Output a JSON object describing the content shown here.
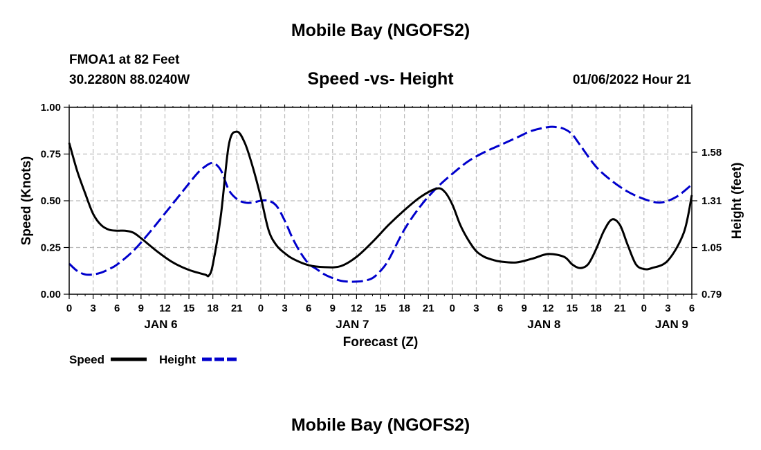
{
  "header": {
    "title": "Mobile Bay (NGOFS2)",
    "station": "FMOA1 at 82 Feet",
    "coords": "30.2280N  88.0240W",
    "subtitle": "Speed -vs- Height",
    "datetime": "01/06/2022 Hour 21"
  },
  "footer": {
    "title": "Mobile Bay (NGOFS2)"
  },
  "chart_data": {
    "type": "line",
    "title": "Speed -vs- Height",
    "xlabel": "Forecast (Z)",
    "ylabel": "Speed (Knots)",
    "y2label": "Height (feet)",
    "xlim": [
      0,
      78
    ],
    "ylim": [
      0,
      1.0
    ],
    "y2lim": [
      0.79,
      1.83
    ],
    "x_ticks": [
      0,
      3,
      6,
      9,
      12,
      15,
      18,
      21,
      24,
      27,
      30,
      33,
      36,
      39,
      42,
      45,
      48,
      51,
      54,
      57,
      60,
      63,
      66,
      69,
      72,
      75,
      78
    ],
    "x_tick_labels": [
      "0",
      "3",
      "6",
      "9",
      "12",
      "15",
      "18",
      "21",
      "0",
      "3",
      "6",
      "9",
      "12",
      "15",
      "18",
      "21",
      "0",
      "3",
      "6",
      "9",
      "12",
      "15",
      "18",
      "21",
      "0",
      "3",
      "6"
    ],
    "date_labels": [
      {
        "x": 12,
        "label": "JAN 6"
      },
      {
        "x": 36,
        "label": "JAN 7"
      },
      {
        "x": 60,
        "label": "JAN 8"
      },
      {
        "x": 76,
        "label": "JAN 9"
      }
    ],
    "y_ticks": [
      0,
      0.25,
      0.5,
      0.75,
      1.0
    ],
    "y_tick_labels": [
      "0.00",
      "0.25",
      "0.50",
      "0.75",
      "1.00"
    ],
    "y2_ticks": [
      0.79,
      1.05,
      1.31,
      1.58
    ],
    "y2_tick_labels": [
      "0.79",
      "1.05",
      "1.31",
      "1.58"
    ],
    "grid": true,
    "legend": {
      "position": "bottom-left"
    },
    "series": [
      {
        "name": "Speed",
        "axis": "left",
        "color": "#000000",
        "style": "solid",
        "x": [
          0,
          1,
          2,
          3,
          4,
          5,
          6,
          7,
          8,
          9,
          11,
          13,
          15,
          17,
          17.5,
          18,
          19,
          20,
          21,
          22,
          23,
          24,
          25,
          26,
          27,
          28,
          30,
          32,
          34,
          36,
          38,
          40,
          42,
          44,
          46,
          47,
          48,
          49,
          50,
          51,
          52,
          53,
          54,
          56,
          58,
          60,
          62,
          63,
          64,
          65,
          66,
          67,
          68,
          69,
          70,
          71,
          72,
          73,
          75,
          77,
          78
        ],
        "values": [
          0.81,
          0.66,
          0.54,
          0.43,
          0.37,
          0.345,
          0.34,
          0.34,
          0.33,
          0.3,
          0.23,
          0.17,
          0.13,
          0.105,
          0.1,
          0.16,
          0.42,
          0.8,
          0.87,
          0.81,
          0.68,
          0.52,
          0.34,
          0.26,
          0.22,
          0.19,
          0.155,
          0.145,
          0.15,
          0.2,
          0.28,
          0.37,
          0.45,
          0.52,
          0.565,
          0.55,
          0.48,
          0.37,
          0.29,
          0.23,
          0.2,
          0.185,
          0.175,
          0.17,
          0.19,
          0.215,
          0.2,
          0.16,
          0.14,
          0.16,
          0.24,
          0.34,
          0.4,
          0.37,
          0.26,
          0.16,
          0.135,
          0.14,
          0.18,
          0.33,
          0.53
        ]
      },
      {
        "name": "Height",
        "axis": "right",
        "color": "#0000cc",
        "style": "dashed",
        "x": [
          0,
          1,
          2,
          3,
          4,
          5,
          6,
          8,
          10,
          12,
          14,
          16,
          17,
          18,
          19,
          20,
          21,
          22,
          23,
          24,
          25,
          26,
          27,
          28,
          29,
          30,
          31,
          32,
          33,
          34,
          35,
          36,
          37,
          38,
          39,
          40,
          42,
          44,
          46,
          48,
          50,
          52,
          54,
          56,
          58,
          60,
          61,
          62,
          63,
          64,
          66,
          68,
          70,
          72,
          74,
          76,
          78
        ],
        "values": [
          0.96,
          0.92,
          0.9,
          0.9,
          0.91,
          0.93,
          0.955,
          1.03,
          1.13,
          1.24,
          1.35,
          1.46,
          1.5,
          1.52,
          1.48,
          1.37,
          1.32,
          1.3,
          1.3,
          1.31,
          1.31,
          1.28,
          1.2,
          1.1,
          1.02,
          0.96,
          0.93,
          0.9,
          0.88,
          0.865,
          0.86,
          0.86,
          0.865,
          0.88,
          0.92,
          0.98,
          1.15,
          1.28,
          1.38,
          1.46,
          1.53,
          1.58,
          1.62,
          1.66,
          1.7,
          1.72,
          1.72,
          1.71,
          1.68,
          1.62,
          1.5,
          1.42,
          1.36,
          1.32,
          1.3,
          1.33,
          1.4
        ]
      }
    ]
  }
}
